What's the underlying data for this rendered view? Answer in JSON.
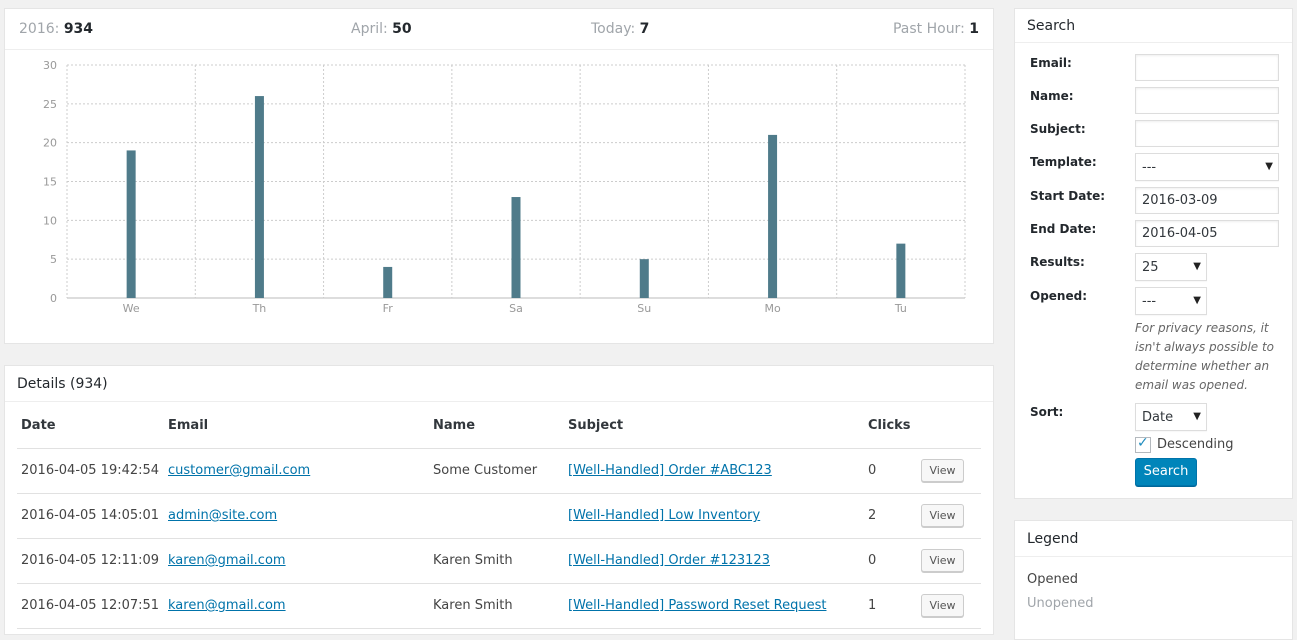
{
  "stats": {
    "year": {
      "label": "2016:",
      "value": "934"
    },
    "month": {
      "label": "April:",
      "value": "50"
    },
    "today": {
      "label": "Today:",
      "value": "7"
    },
    "hour": {
      "label": "Past Hour:",
      "value": "1"
    }
  },
  "chart_data": {
    "type": "bar",
    "categories": [
      "We",
      "Th",
      "Fr",
      "Sa",
      "Su",
      "Mo",
      "Tu"
    ],
    "values": [
      19,
      26,
      4,
      13,
      5,
      21,
      7
    ],
    "ylim": [
      0,
      30
    ],
    "yticks": [
      "0",
      "5",
      "10",
      "15",
      "20",
      "25",
      "30"
    ],
    "grid": true,
    "bar_color": "#4f7b8a"
  },
  "details": {
    "title": "Details (934)",
    "columns": [
      "Date",
      "Email",
      "Name",
      "Subject",
      "Clicks"
    ],
    "view_label": "View",
    "rows": [
      {
        "date": "2016-04-05 19:42:54",
        "email": "customer@gmail.com",
        "name": "Some Customer",
        "subject": "[Well-Handled] Order #ABC123",
        "clicks": "0"
      },
      {
        "date": "2016-04-05 14:05:01",
        "email": "admin@site.com",
        "name": "",
        "subject": "[Well-Handled] Low Inventory",
        "clicks": "2"
      },
      {
        "date": "2016-04-05 12:11:09",
        "email": "karen@gmail.com",
        "name": "Karen Smith",
        "subject": "[Well-Handled] Order #123123",
        "clicks": "0"
      },
      {
        "date": "2016-04-05 12:07:51",
        "email": "karen@gmail.com",
        "name": "Karen Smith",
        "subject": "[Well-Handled] Password Reset Request",
        "clicks": "1"
      }
    ]
  },
  "search": {
    "title": "Search",
    "email_label": "Email:",
    "email_value": "",
    "name_label": "Name:",
    "name_value": "",
    "subject_label": "Subject:",
    "subject_value": "",
    "template_label": "Template:",
    "template_value": "---",
    "start_label": "Start Date:",
    "start_value": "2016-03-09",
    "end_label": "End Date:",
    "end_value": "2016-04-05",
    "results_label": "Results:",
    "results_value": "25",
    "opened_label": "Opened:",
    "opened_value": "---",
    "privacy_note": "For privacy reasons, it isn't always possible to determine whether an email was opened.",
    "sort_label": "Sort:",
    "sort_value": "Date",
    "descending_label": "Descending",
    "descending_checked": true,
    "button_label": "Search",
    "caret_icon": "chevron-down-icon"
  },
  "legend": {
    "title": "Legend",
    "opened": "Opened",
    "unopened": "Unopened",
    "opened_color": "#444444",
    "unopened_color": "#a0a5aa"
  }
}
